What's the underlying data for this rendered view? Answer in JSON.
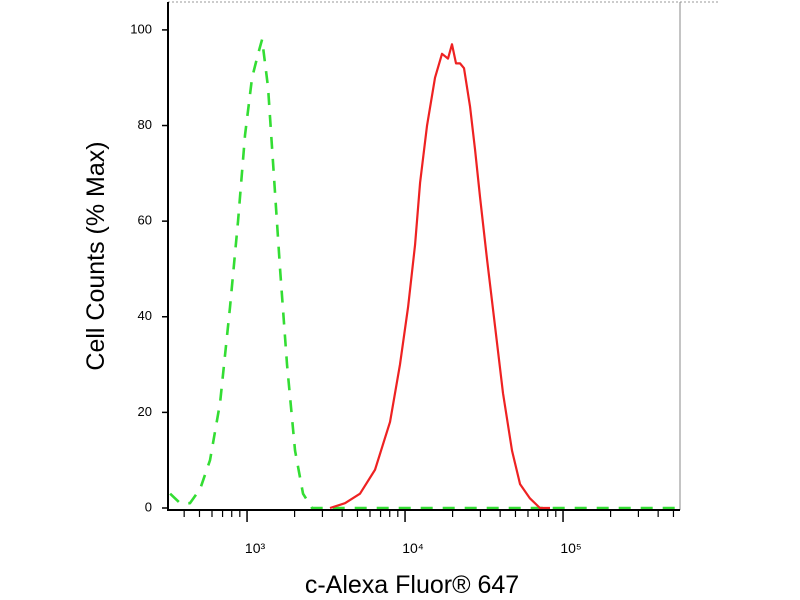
{
  "chart_data": {
    "type": "line",
    "xlabel": "c-Alexa Fluor® 647",
    "ylabel": "Cell Counts (% Max)",
    "xscale": "log",
    "xlim": [
      316,
      550000
    ],
    "ylim": [
      0,
      105
    ],
    "xticks": [
      {
        "value": 1000,
        "label": "10³"
      },
      {
        "value": 10000,
        "label": "10⁴"
      },
      {
        "value": 100000,
        "label": "10⁵"
      }
    ],
    "xminorticks": [
      400,
      500,
      600,
      700,
      800,
      900,
      2000,
      3000,
      4000,
      5000,
      6000,
      7000,
      8000,
      9000,
      20000,
      30000,
      40000,
      50000,
      60000,
      70000,
      80000,
      90000,
      200000,
      300000,
      400000,
      500000
    ],
    "yticks": [
      0,
      20,
      40,
      60,
      80,
      100
    ],
    "series": [
      {
        "color": "#33dd33",
        "dashed": true,
        "x": [
          326,
          377,
          435,
          505,
          583,
          675,
          780,
          877,
          971,
          1076,
          1175,
          1245,
          1358,
          1462,
          1618,
          1791,
          2013,
          2261,
          2578,
          550000
        ],
        "values": [
          3,
          1,
          1,
          4,
          10,
          22,
          42,
          60,
          78,
          90,
          95,
          98,
          88,
          72,
          50,
          30,
          12,
          3,
          0,
          0
        ]
      },
      {
        "color": "#ee2222",
        "dashed": false,
        "x": [
          3350,
          4169,
          5188,
          6457,
          8035,
          9290,
          10450,
          11570,
          12450,
          13780,
          15480,
          17140,
          18710,
          19820,
          21020,
          22290,
          23620,
          25780,
          27730,
          29840,
          33040,
          37130,
          41700,
          47550,
          53450,
          61800,
          71450,
          82700
        ],
        "values": [
          0,
          1,
          3,
          8,
          18,
          30,
          42,
          55,
          68,
          80,
          90,
          95,
          94,
          97,
          93,
          93,
          92,
          84,
          75,
          65,
          52,
          38,
          24,
          12,
          5,
          2,
          0,
          0
        ]
      }
    ]
  }
}
